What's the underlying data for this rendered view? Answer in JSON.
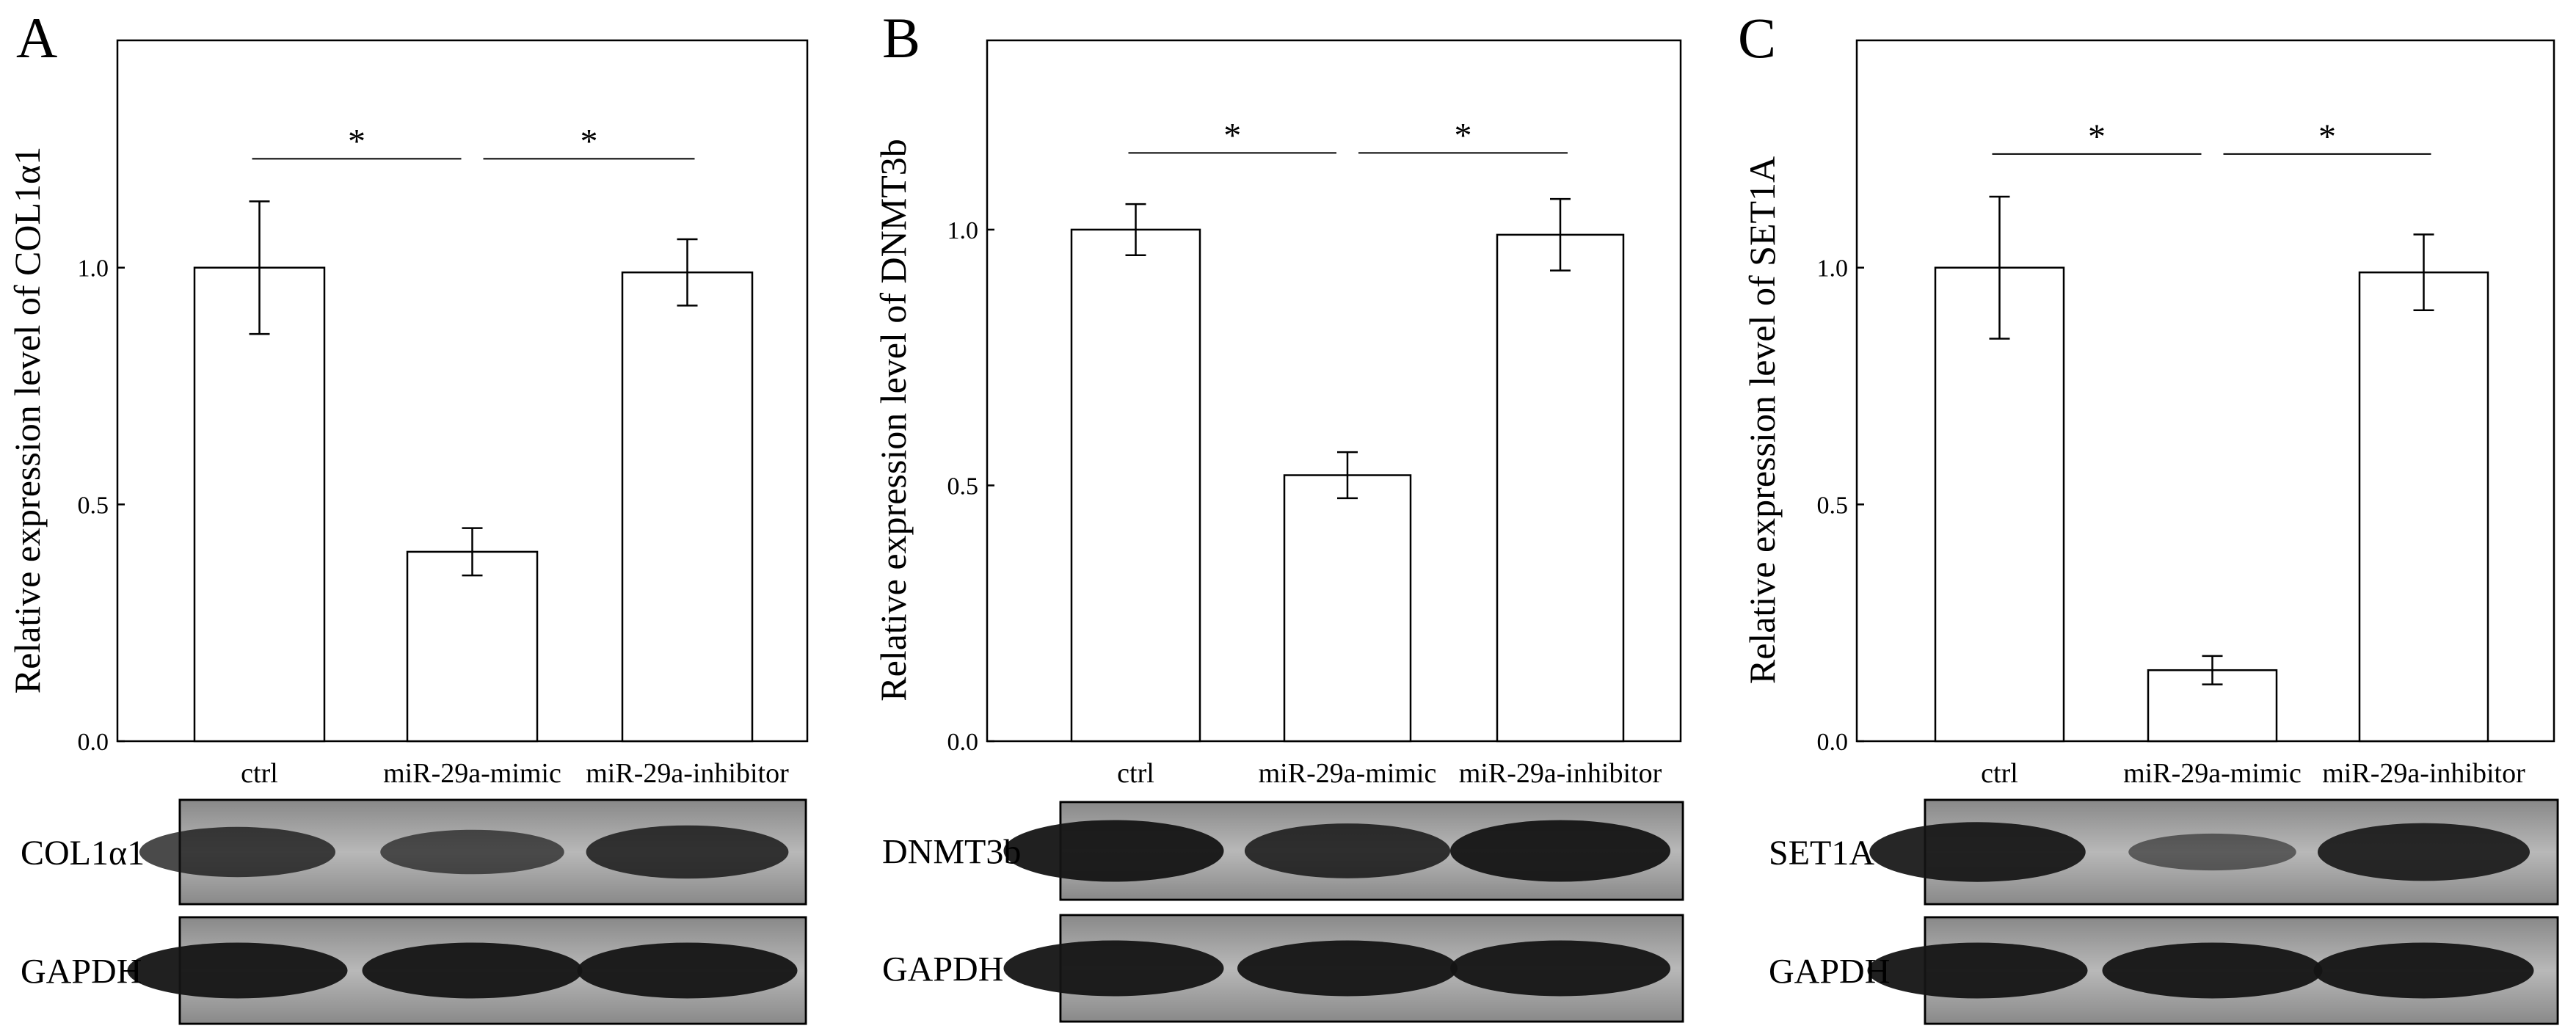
{
  "figure": {
    "panels": [
      {
        "letter": "A",
        "blot_labels": [
          "COL1α1",
          "GAPDH"
        ],
        "blot_intensity": [
          0.7,
          0.55,
          0.78
        ],
        "chart_data": {
          "type": "bar",
          "title": "",
          "xlabel": "",
          "ylabel": "Relative expression level of COL1α1",
          "categories": [
            "ctrl",
            "miR-29a-mimic",
            "miR-29a-inhibitor"
          ],
          "values": [
            1.0,
            0.4,
            0.99
          ],
          "errors": [
            0.14,
            0.05,
            0.07
          ],
          "ylim": [
            0,
            1.48
          ],
          "yticks": [
            0.0,
            0.5,
            1.0
          ],
          "ytick_labels": [
            "0.0",
            "0.5",
            "1.0"
          ],
          "significance": [
            {
              "from": 0,
              "to": 1,
              "label": "*",
              "y": 1.23
            },
            {
              "from": 1,
              "to": 2,
              "label": "*",
              "y": 1.23
            }
          ]
        }
      },
      {
        "letter": "B",
        "blot_labels": [
          "DNMT3b",
          "GAPDH"
        ],
        "blot_intensity": [
          1.0,
          0.82,
          1.0
        ],
        "chart_data": {
          "type": "bar",
          "title": "",
          "xlabel": "",
          "ylabel": "Relative expression level of DNMT3b",
          "categories": [
            "ctrl",
            "miR-29a-mimic",
            "miR-29a-inhibitor"
          ],
          "values": [
            1.0,
            0.52,
            0.99
          ],
          "errors": [
            0.05,
            0.045,
            0.07
          ],
          "ylim": [
            0,
            1.37
          ],
          "yticks": [
            0.0,
            0.5,
            1.0
          ],
          "ytick_labels": [
            "0.0",
            "0.5",
            "1.0"
          ],
          "significance": [
            {
              "from": 0,
              "to": 1,
              "label": "*",
              "y": 1.15
            },
            {
              "from": 1,
              "to": 2,
              "label": "*",
              "y": 1.15
            }
          ]
        }
      },
      {
        "letter": "C",
        "blot_labels": [
          "SET1A",
          "GAPDH"
        ],
        "blot_intensity": [
          0.95,
          0.35,
          0.9
        ],
        "chart_data": {
          "type": "bar",
          "title": "",
          "xlabel": "",
          "ylabel": "Relative expression level of SET1A",
          "categories": [
            "ctrl",
            "miR-29a-mimic",
            "miR-29a-inhibitor"
          ],
          "values": [
            1.0,
            0.15,
            0.99
          ],
          "errors": [
            0.15,
            0.03,
            0.08
          ],
          "ylim": [
            0,
            1.48
          ],
          "yticks": [
            0.0,
            0.5,
            1.0
          ],
          "ytick_labels": [
            "0.0",
            "0.5",
            "1.0"
          ],
          "significance": [
            {
              "from": 0,
              "to": 1,
              "label": "*",
              "y": 1.24
            },
            {
              "from": 1,
              "to": 2,
              "label": "*",
              "y": 1.24
            }
          ]
        }
      }
    ]
  }
}
